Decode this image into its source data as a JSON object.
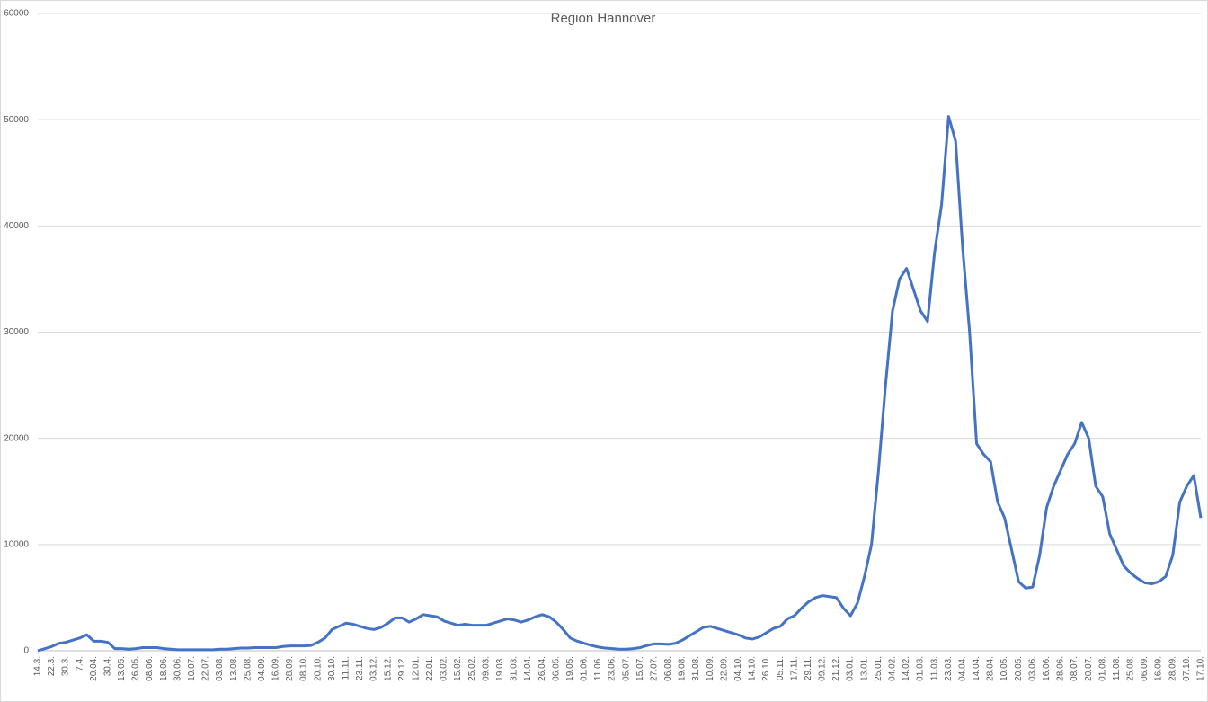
{
  "chart_data": {
    "type": "line",
    "title": "Region Hannover",
    "categories": [
      "14.3.",
      null,
      "22.3.",
      null,
      "30.3.",
      null,
      "7.4.",
      null,
      "20.04.",
      null,
      "30.4.",
      null,
      "13.05.",
      null,
      "26.05.",
      null,
      "08.06.",
      null,
      "18.06.",
      null,
      "30.06.",
      null,
      "10.07.",
      null,
      "22.07.",
      null,
      "03.08.",
      null,
      "13.08.",
      null,
      "25.08.",
      null,
      "04.09.",
      null,
      "16.09.",
      null,
      "28.09.",
      null,
      "08.10.",
      null,
      "20.10.",
      null,
      "30.10.",
      null,
      "11.11.",
      null,
      "23.11.",
      null,
      "03.12.",
      null,
      "15.12.",
      null,
      "29.12.",
      null,
      "12.01.",
      null,
      "22.01.",
      null,
      "03.02.",
      null,
      "15.02.",
      null,
      "25.02.",
      null,
      "09.03.",
      null,
      "19.03.",
      null,
      "31.03.",
      null,
      "14.04.",
      null,
      "26.04.",
      null,
      "06.05.",
      null,
      "19.05.",
      null,
      "01.06.",
      null,
      "11.06.",
      null,
      "23.06.",
      null,
      "05.07.",
      null,
      "15.07.",
      null,
      "27.07.",
      null,
      "06.08.",
      null,
      "19.08.",
      null,
      "31.08.",
      null,
      "10.09.",
      null,
      "22.09.",
      null,
      "04.10.",
      null,
      "14.10.",
      null,
      "26.10.",
      null,
      "05.11.",
      null,
      "17.11.",
      null,
      "29.11.",
      null,
      "09.12.",
      null,
      "21.12.",
      null,
      "03.01.",
      null,
      "13.01.",
      null,
      "25.01.",
      null,
      "04.02.",
      null,
      "14.02.",
      null,
      "01.03.",
      null,
      "11.03.",
      null,
      "23.03.",
      null,
      "04.04.",
      null,
      "14.04.",
      null,
      "28.04.",
      null,
      "10.05.",
      null,
      "20.05.",
      null,
      "03.06.",
      null,
      "16.06.",
      null,
      "28.06.",
      null,
      "08.07.",
      null,
      "20.07.",
      null,
      "01.08.",
      null,
      "11.08.",
      null,
      "25.08.",
      null,
      "06.09.",
      null,
      "16.09.",
      null,
      "28.09.",
      null,
      "07.10.",
      null,
      "17.10."
    ],
    "series": [
      {
        "color": "#4472c4",
        "values": [
          0,
          200,
          400,
          700,
          800,
          1000,
          1200,
          1500,
          900,
          900,
          800,
          200,
          200,
          150,
          200,
          300,
          300,
          300,
          200,
          150,
          100,
          100,
          100,
          100,
          100,
          100,
          150,
          150,
          200,
          250,
          250,
          300,
          300,
          300,
          300,
          400,
          450,
          450,
          450,
          500,
          800,
          1200,
          2000,
          2300,
          2600,
          2500,
          2300,
          2100,
          2000,
          2200,
          2600,
          3100,
          3100,
          2700,
          3000,
          3400,
          3300,
          3200,
          2800,
          2600,
          2400,
          2500,
          2400,
          2400,
          2400,
          2600,
          2800,
          3000,
          2900,
          2700,
          2900,
          3200,
          3400,
          3200,
          2700,
          2000,
          1200,
          900,
          700,
          500,
          350,
          250,
          200,
          150,
          150,
          200,
          300,
          500,
          650,
          650,
          600,
          700,
          1000,
          1400,
          1800,
          2200,
          2300,
          2100,
          1900,
          1700,
          1500,
          1200,
          1100,
          1300,
          1700,
          2100,
          2300,
          3000,
          3300,
          4000,
          4600,
          5000,
          5200,
          5100,
          5000,
          4000,
          3300,
          4500,
          7000,
          10000,
          17000,
          25000,
          32000,
          35000,
          36000,
          34000,
          32000,
          31000,
          37500,
          42000,
          50300,
          48000,
          38000,
          30000,
          19500,
          18500,
          17800,
          14000,
          12500,
          9500,
          6500,
          5900,
          6000,
          9000,
          13500,
          15500,
          17000,
          18500,
          19500,
          21500,
          20000,
          15500,
          14500,
          11000,
          9500,
          8000,
          7300,
          6800,
          6400,
          6300,
          6500,
          7000,
          9000,
          14000,
          15500,
          16500,
          12500
        ]
      }
    ],
    "ylim": [
      0,
      60000
    ],
    "yticks": [
      0,
      10000,
      20000,
      30000,
      40000,
      50000,
      60000
    ],
    "grid": true
  }
}
